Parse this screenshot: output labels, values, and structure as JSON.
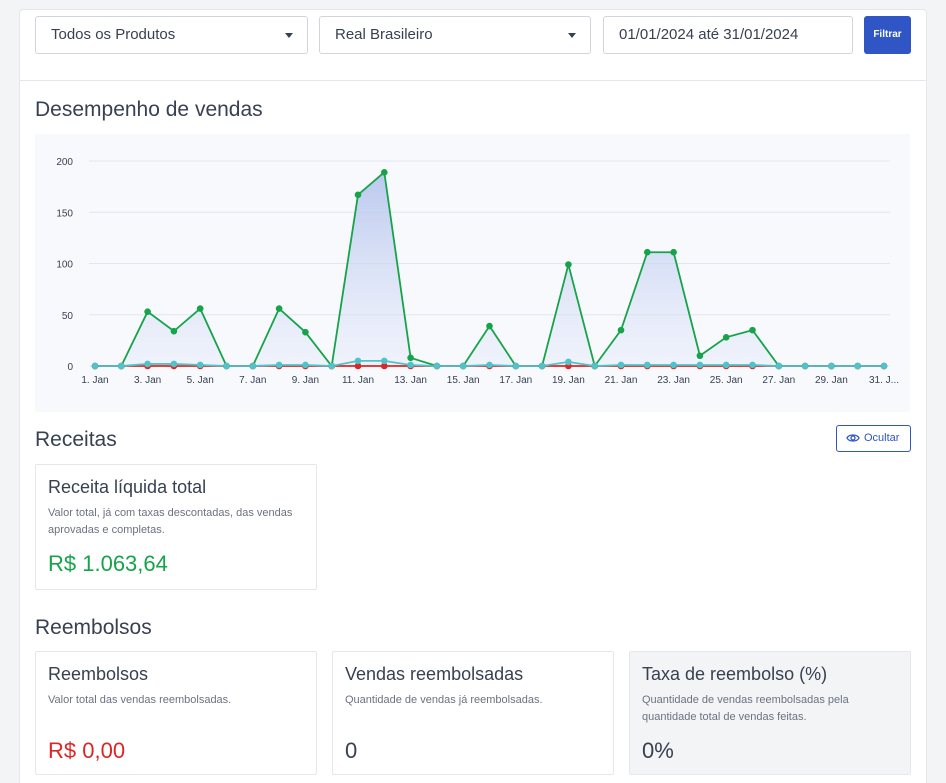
{
  "filters": {
    "product": "Todos os Produtos",
    "currency": "Real Brasileiro",
    "date_range": "01/01/2024 até 31/01/2024",
    "filter_label": "Filtrar"
  },
  "sales": {
    "title": "Desempenho de vendas"
  },
  "chart_data": {
    "type": "line",
    "x_tick_labels": [
      "1. Jan",
      "3. Jan",
      "5. Jan",
      "7. Jan",
      "9. Jan",
      "11. Jan",
      "13. Jan",
      "15. Jan",
      "17. Jan",
      "19. Jan",
      "21. Jan",
      "23. Jan",
      "25. Jan",
      "27. Jan",
      "29. Jan",
      "31. J..."
    ],
    "x": [
      "1. Jan",
      "2. Jan",
      "3. Jan",
      "4. Jan",
      "5. Jan",
      "6. Jan",
      "7. Jan",
      "8. Jan",
      "9. Jan",
      "10. Jan",
      "11. Jan",
      "12. Jan",
      "13. Jan",
      "14. Jan",
      "15. Jan",
      "16. Jan",
      "17. Jan",
      "18. Jan",
      "19. Jan",
      "20. Jan",
      "21. Jan",
      "22. Jan",
      "23. Jan",
      "24. Jan",
      "25. Jan",
      "26. Jan",
      "27. Jan",
      "28. Jan",
      "29. Jan",
      "30. Jan",
      "31. Jan"
    ],
    "yticks": [
      0,
      50,
      100,
      150,
      200
    ],
    "ylim": [
      0,
      200
    ],
    "grid": true,
    "series": [
      {
        "color": "#16a34a",
        "area": true,
        "values": [
          0,
          0,
          53,
          34,
          56,
          0,
          0,
          56,
          33,
          0,
          167,
          189,
          8,
          0,
          0,
          39,
          0,
          0,
          99,
          0,
          35,
          111,
          111,
          10,
          28,
          35,
          0,
          0,
          0,
          0,
          0
        ]
      },
      {
        "color": "#dc2626",
        "values": [
          0,
          0,
          0,
          0,
          0,
          0,
          0,
          0,
          0,
          0,
          0,
          0,
          0,
          0,
          0,
          0,
          0,
          0,
          0,
          0,
          0,
          0,
          0,
          0,
          0,
          0,
          0,
          0,
          0,
          0,
          0
        ]
      },
      {
        "color": "#4fc3c9",
        "values": [
          0,
          0,
          2,
          2,
          1,
          0,
          0,
          1,
          1,
          0,
          5,
          5,
          1,
          0,
          0,
          1,
          0,
          0,
          4,
          0,
          1,
          1,
          1,
          1,
          1,
          1,
          0,
          0,
          0,
          0,
          0
        ]
      }
    ]
  },
  "receitas": {
    "title": "Receitas",
    "hide_label": "Ocultar",
    "card": {
      "title": "Receita líquida total",
      "desc": "Valor total, já com taxas descontadas, das vendas aprovadas e completas.",
      "value": "R$ 1.063,64",
      "color": "#16a34a"
    }
  },
  "reembolsos": {
    "title": "Reembolsos",
    "cards": [
      {
        "title": "Reembolsos",
        "desc": "Valor total das vendas reembolsadas.",
        "value": "R$ 0,00",
        "color": "#dc2626"
      },
      {
        "title": "Vendas reembolsadas",
        "desc": "Quantidade de vendas já reembolsadas.",
        "value": "0",
        "color": "#374151"
      },
      {
        "title": "Taxa de reembolso (%)",
        "desc": "Quantidade de vendas reembolsadas pela quantidade total de vendas feitas.",
        "value": "0%",
        "color": "#374151"
      }
    ]
  }
}
